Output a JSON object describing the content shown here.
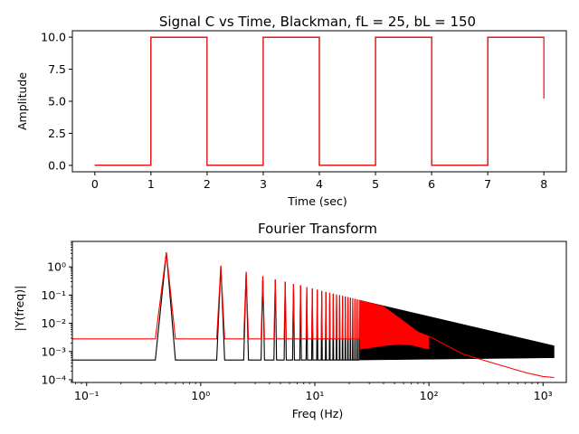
{
  "chart_data": [
    {
      "type": "line",
      "title": "Signal C vs Time, Blackman, fL = 25, bL = 150",
      "xlabel": "Time (sec)",
      "ylabel": "Amplitude",
      "xlim": [
        -0.4,
        8.4
      ],
      "ylim": [
        -0.5,
        10.5
      ],
      "x_ticks": [
        0,
        1,
        2,
        3,
        4,
        5,
        6,
        7,
        8
      ],
      "x_tick_labels": [
        "0",
        "1",
        "2",
        "3",
        "4",
        "5",
        "6",
        "7",
        "8"
      ],
      "y_ticks": [
        0.0,
        2.5,
        5.0,
        7.5,
        10.0
      ],
      "y_tick_labels": [
        "0.0",
        "2.5",
        "5.0",
        "7.5",
        "10.0"
      ],
      "grid": false,
      "series": [
        {
          "color": "#000000",
          "x": [
            0,
            1,
            1,
            2,
            2,
            3,
            3,
            4,
            4,
            5,
            5,
            6,
            6,
            7,
            7,
            8
          ],
          "y": [
            0,
            0,
            10,
            10,
            0,
            0,
            10,
            10,
            0,
            0,
            10,
            10,
            0,
            0,
            10,
            10
          ]
        },
        {
          "color": "#ff0000",
          "x": [
            0,
            1,
            1,
            2,
            2,
            3,
            3,
            4,
            4,
            5,
            5,
            6,
            6,
            7,
            7,
            8,
            8
          ],
          "y": [
            0,
            0,
            10,
            10,
            0,
            0,
            10,
            10,
            0,
            0,
            10,
            10,
            0,
            0,
            10,
            10,
            5.2
          ]
        }
      ]
    },
    {
      "type": "line",
      "title": "Fourier Transform",
      "xlabel": "Freq (Hz)",
      "ylabel": "|Y(freq)|",
      "xscale": "log",
      "yscale": "log",
      "xlim": [
        0.075,
        1600
      ],
      "ylim": [
        8e-05,
        8
      ],
      "x_ticks": [
        0.1,
        1,
        10,
        100,
        1000
      ],
      "x_tick_labels": [
        "10⁻¹",
        "10⁰",
        "10¹",
        "10²",
        "10³"
      ],
      "y_ticks": [
        0.0001,
        0.001,
        0.01,
        0.1,
        1
      ],
      "y_tick_labels": [
        "10⁻⁴",
        "10⁻³",
        "10⁻²",
        "10⁻¹",
        "10⁰"
      ],
      "grid": false,
      "series": [
        {
          "color": "#000000",
          "description_fields": [
            "floor",
            "harmonic_peaks",
            "band_start",
            "band_end"
          ],
          "floor": 0.0005,
          "harmonic_peaks": [
            [
              0.5,
              3.3
            ],
            [
              1.5,
              1.1
            ],
            [
              2.5,
              0.66
            ],
            [
              3.5,
              0.47
            ],
            [
              4.5,
              0.36
            ],
            [
              5.5,
              0.3
            ],
            [
              6.5,
              0.25
            ],
            [
              7.5,
              0.22
            ],
            [
              8.5,
              0.19
            ],
            [
              9.5,
              0.17
            ],
            [
              10.5,
              0.155
            ],
            [
              11.5,
              0.14
            ],
            [
              12.5,
              0.13
            ],
            [
              13.5,
              0.12
            ],
            [
              14.5,
              0.113
            ],
            [
              15.5,
              0.105
            ],
            [
              16.5,
              0.1
            ],
            [
              17.5,
              0.094
            ],
            [
              18.5,
              0.089
            ],
            [
              19.5,
              0.085
            ],
            [
              20.5,
              0.081
            ],
            [
              21.5,
              0.077
            ],
            [
              22.5,
              0.074
            ],
            [
              23.5,
              0.071
            ],
            [
              24.5,
              0.068
            ]
          ],
          "band_start": [
            25,
            0.065,
            0.0005
          ],
          "band_end": [
            1250,
            0.0016,
            0.0006
          ]
        },
        {
          "color": "#ff0000",
          "floor": 0.0028,
          "harmonic_peaks": [
            [
              0.5,
              3.3
            ],
            [
              1.5,
              1.1
            ],
            [
              2.5,
              0.66
            ],
            [
              3.5,
              0.47
            ],
            [
              4.5,
              0.36
            ],
            [
              5.5,
              0.3
            ],
            [
              6.5,
              0.25
            ],
            [
              7.5,
              0.22
            ],
            [
              8.5,
              0.19
            ],
            [
              9.5,
              0.17
            ],
            [
              10.5,
              0.155
            ],
            [
              11.5,
              0.14
            ],
            [
              12.5,
              0.13
            ],
            [
              13.5,
              0.12
            ],
            [
              14.5,
              0.113
            ],
            [
              15.5,
              0.105
            ],
            [
              16.5,
              0.1
            ],
            [
              17.5,
              0.094
            ],
            [
              18.5,
              0.089
            ],
            [
              19.5,
              0.085
            ],
            [
              20.5,
              0.081
            ],
            [
              21.5,
              0.077
            ],
            [
              22.5,
              0.074
            ],
            [
              23.5,
              0.071
            ],
            [
              24.5,
              0.068
            ]
          ],
          "band_upper": [
            [
              25,
              0.065
            ],
            [
              40,
              0.04
            ],
            [
              60,
              0.012
            ],
            [
              80,
              0.005
            ],
            [
              100,
              0.0035
            ]
          ],
          "band_lower": [
            [
              25,
              0.0012
            ],
            [
              40,
              0.0016
            ],
            [
              55,
              0.0018
            ],
            [
              70,
              0.0017
            ],
            [
              100,
              0.0012
            ]
          ],
          "tail": [
            [
              100,
              0.0035
            ],
            [
              200,
              0.0008
            ],
            [
              400,
              0.00035
            ],
            [
              700,
              0.00018
            ],
            [
              1000,
              0.00013
            ],
            [
              1250,
              0.00012
            ]
          ]
        }
      ]
    }
  ]
}
